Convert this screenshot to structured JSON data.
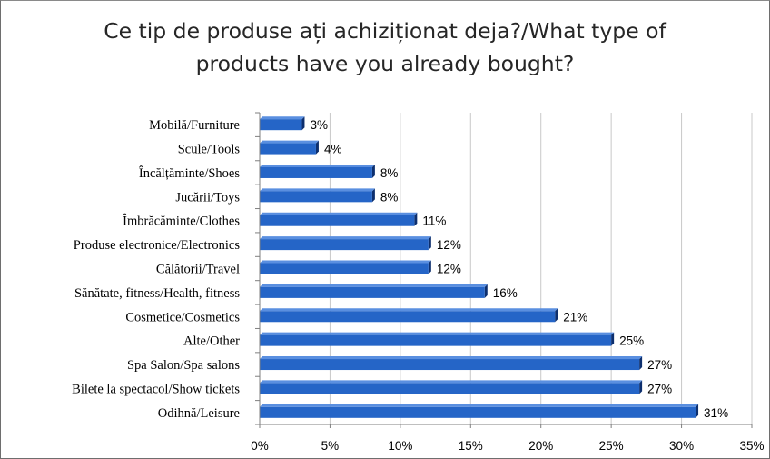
{
  "title_line1": "Ce tip de produse ați achiziționat deja?/What type of",
  "title_line2": "products have you already bought?",
  "colors": {
    "bar": "#2565c7",
    "bar_top": "#5a8fe0",
    "bar_end": "#0d2f6e",
    "grid": "#c8c8c8",
    "axis": "#7f7f7f"
  },
  "chart_data": {
    "type": "bar",
    "orientation": "horizontal",
    "title": "Ce tip de produse ați achiziționat deja?/What type of products have you already bought?",
    "categories": [
      "Mobilă/Furniture",
      "Scule/Tools",
      "Încălțăminte/Shoes",
      "Jucării/Toys",
      "Îmbrăcăminte/Clothes",
      "Produse electronice/Electronics",
      "Călătorii/Travel",
      "Sănătate, fitness/Health,  fitness",
      "Cosmetice/Cosmetics",
      "Alte/Other",
      "Spa Salon/Spa salons",
      "Bilete la spectacol/Show tickets",
      "Odihnă/Leisure"
    ],
    "values": [
      3,
      4,
      8,
      8,
      11,
      12,
      12,
      16,
      21,
      25,
      27,
      27,
      31
    ],
    "data_labels": [
      "3%",
      "4%",
      "8%",
      "8%",
      "11%",
      "12%",
      "12%",
      "16%",
      "21%",
      "25%",
      "27%",
      "27%",
      "31%"
    ],
    "xlim": [
      0,
      35
    ],
    "x_ticks": [
      0,
      5,
      10,
      15,
      20,
      25,
      30,
      35
    ],
    "x_tick_labels": [
      "0%",
      "5%",
      "10%",
      "15%",
      "20%",
      "25%",
      "30%",
      "35%"
    ],
    "grid": true,
    "legend": "none"
  }
}
